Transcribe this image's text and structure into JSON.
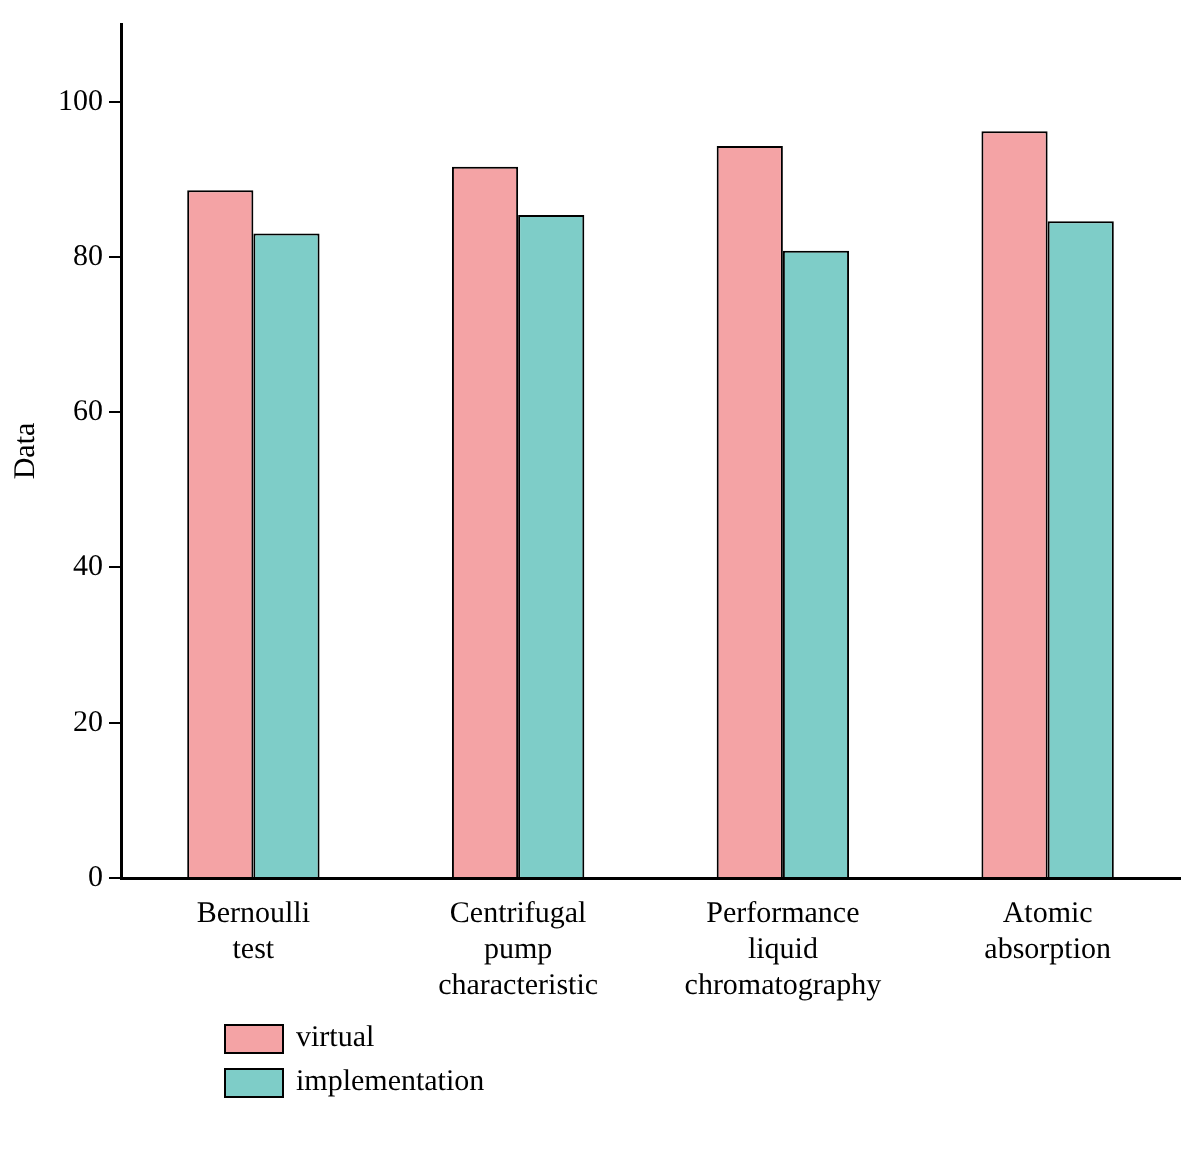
{
  "chart_data": {
    "type": "bar",
    "ylabel": "Data",
    "categories": [
      "Bernoulli test",
      "Centrifugal pump characteristic",
      "Performance liquid chromatography",
      "Atomic absorption"
    ],
    "series": [
      {
        "name": "virtual",
        "color": "#f4a3a5",
        "values": [
          88.6,
          91.6,
          94.3,
          96.2
        ]
      },
      {
        "name": "implementation",
        "color": "#7ecdc8",
        "values": [
          83.0,
          85.4,
          80.8,
          84.6
        ]
      }
    ],
    "ylim": [
      0,
      110
    ],
    "yticks": [
      0,
      20,
      40,
      60,
      80,
      100
    ],
    "grid": false,
    "legend": "bottom left"
  }
}
